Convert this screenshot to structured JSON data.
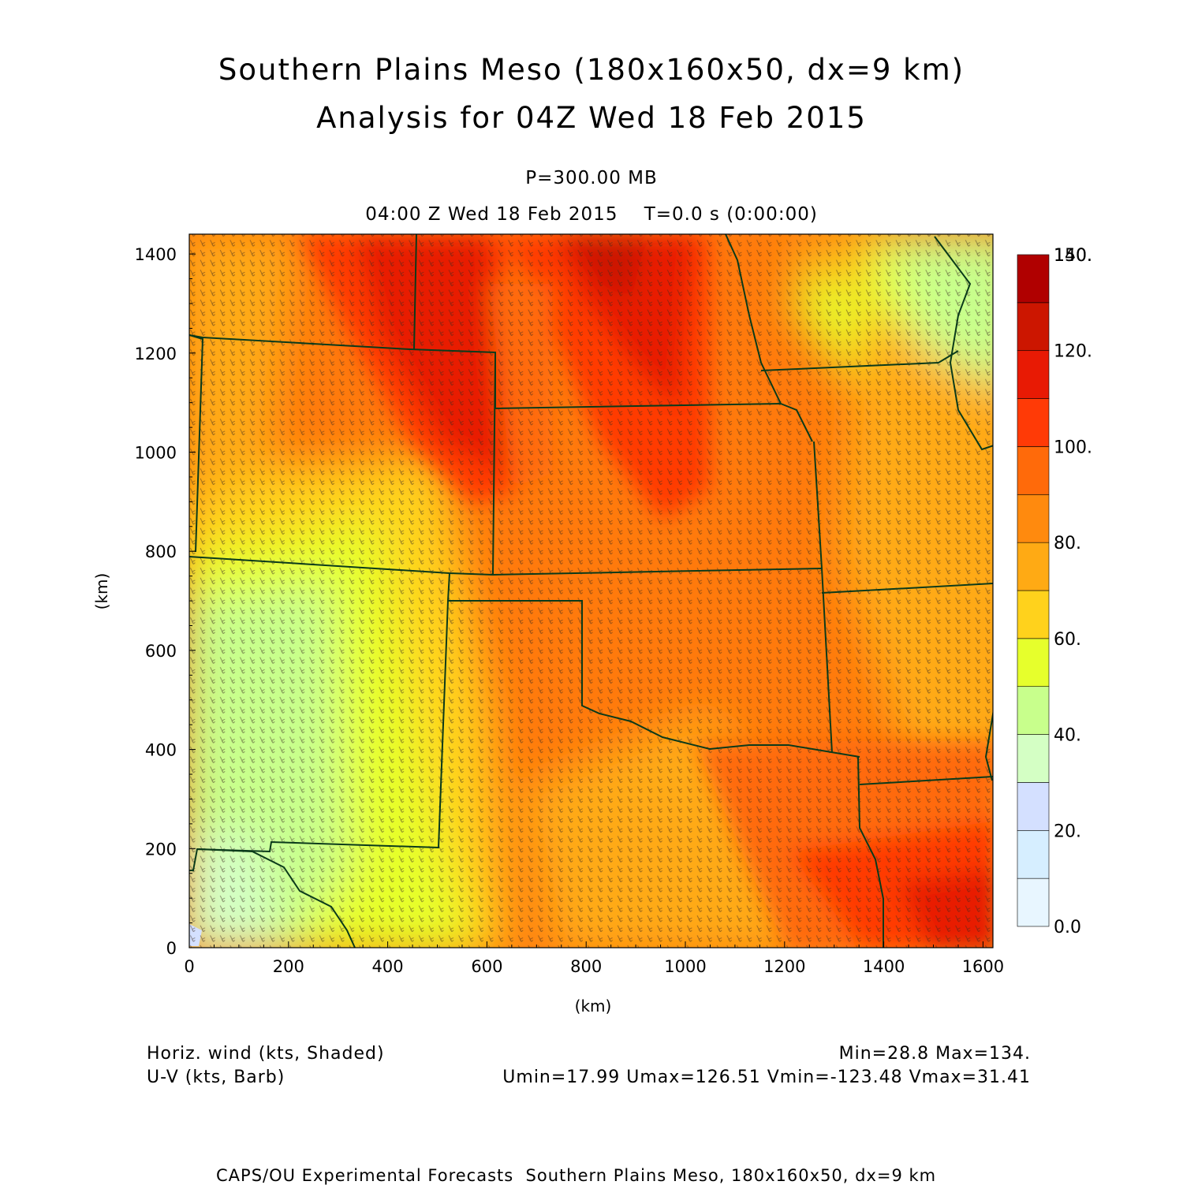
{
  "title": {
    "line1": "Southern Plains Meso (180x160x50, dx=9 km)",
    "line2": "Analysis for 04Z Wed 18 Feb 2015"
  },
  "subtitle": {
    "level": "P=300.00 MB",
    "time": "04:00 Z Wed 18 Feb 2015    T=0.0 s (0:00:00)"
  },
  "chart_data": {
    "type": "heatmap",
    "xlabel": "(km)",
    "ylabel": "(km)",
    "xlim": [
      0,
      1620
    ],
    "ylim": [
      0,
      1440
    ],
    "x_ticks": [
      "0",
      "200",
      "400",
      "600",
      "800",
      "1000",
      "1200",
      "1400",
      "1600"
    ],
    "y_ticks": [
      "0",
      "200",
      "400",
      "600",
      "800",
      "1000",
      "1200",
      "1400"
    ],
    "colorbar": {
      "labels": [
        "0.0",
        "20.",
        "40.",
        "60.",
        "80.",
        "100.",
        "120.",
        "140.",
        "150."
      ],
      "colors": [
        "#e8f6ff",
        "#d6eeff",
        "#d4e0ff",
        "#d4ffc4",
        "#c8ff8c",
        "#e6ff2c",
        "#ffd21c",
        "#ffaa14",
        "#ff8a0e",
        "#ff6a0a",
        "#ff3a06",
        "#e81a04",
        "#cc1600",
        "#b00000"
      ]
    },
    "shaded_field": "Horiz. wind (kts, Shaded)",
    "barb_field": "U-V (kts, Barb)",
    "stats": {
      "min": 28.8,
      "max": 134,
      "umin": 17.99,
      "umax": 126.51,
      "vmin": -123.48,
      "vmax": 31.41
    }
  },
  "legend": {
    "left1": "Horiz. wind (kts, Shaded)",
    "left2": "U-V (kts, Barb)",
    "right1": "Min=28.8 Max=134.",
    "right2": "Umin=17.99 Umax=126.51 Vmin=-123.48 Vmax=31.41"
  },
  "footer": "CAPS/OU Experimental Forecasts  Southern Plains Meso, 180x160x50, dx=9 km"
}
